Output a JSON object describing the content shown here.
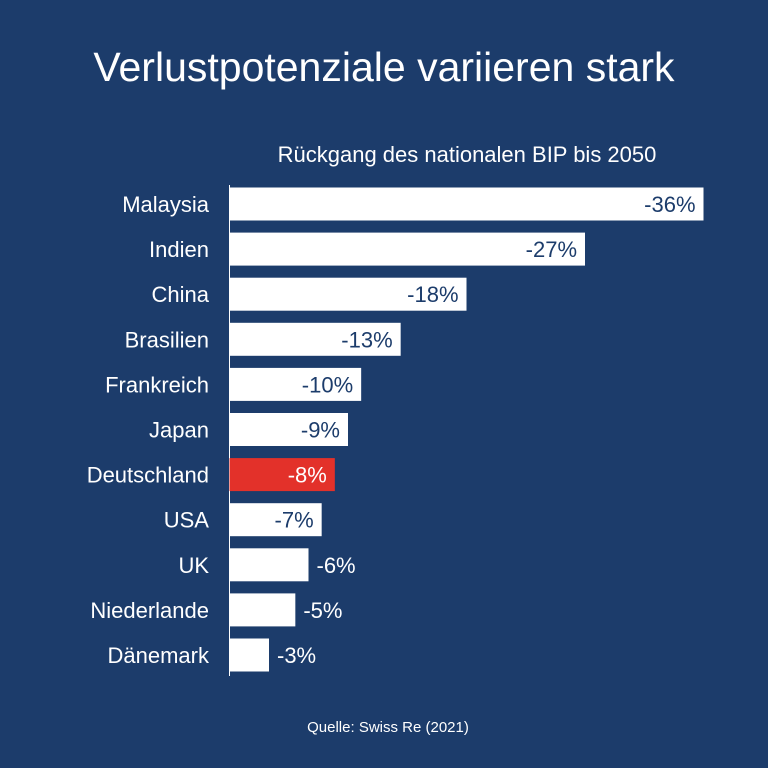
{
  "title": "Verlustpotenziale variieren stark",
  "source": "Quelle: Swiss Re (2021)",
  "colors": {
    "background": "#1c3c6b",
    "bar": "#ffffff",
    "highlight": "#e3312a",
    "label_on_bar": "#1c3c6b",
    "label_outside": "#ffffff"
  },
  "chart_data": {
    "type": "bar",
    "orientation": "horizontal",
    "title": "Rückgang des nationalen BIP bis 2050",
    "categories": [
      "Malaysia",
      "Indien",
      "China",
      "Brasilien",
      "Frankreich",
      "Japan",
      "Deutschland",
      "USA",
      "UK",
      "Niederlande",
      "Dänemark"
    ],
    "values": [
      -36,
      -27,
      -18,
      -13,
      -10,
      -9,
      -8,
      -7,
      -6,
      -5,
      -3
    ],
    "labels": [
      "-36%",
      "-27%",
      "-18%",
      "-13%",
      "-10%",
      "-9%",
      "-8%",
      "-7%",
      "-6%",
      "-5%",
      "-3%"
    ],
    "highlight": "Deutschland",
    "unit": "%",
    "xlim": [
      0,
      -36
    ],
    "grid": false
  }
}
